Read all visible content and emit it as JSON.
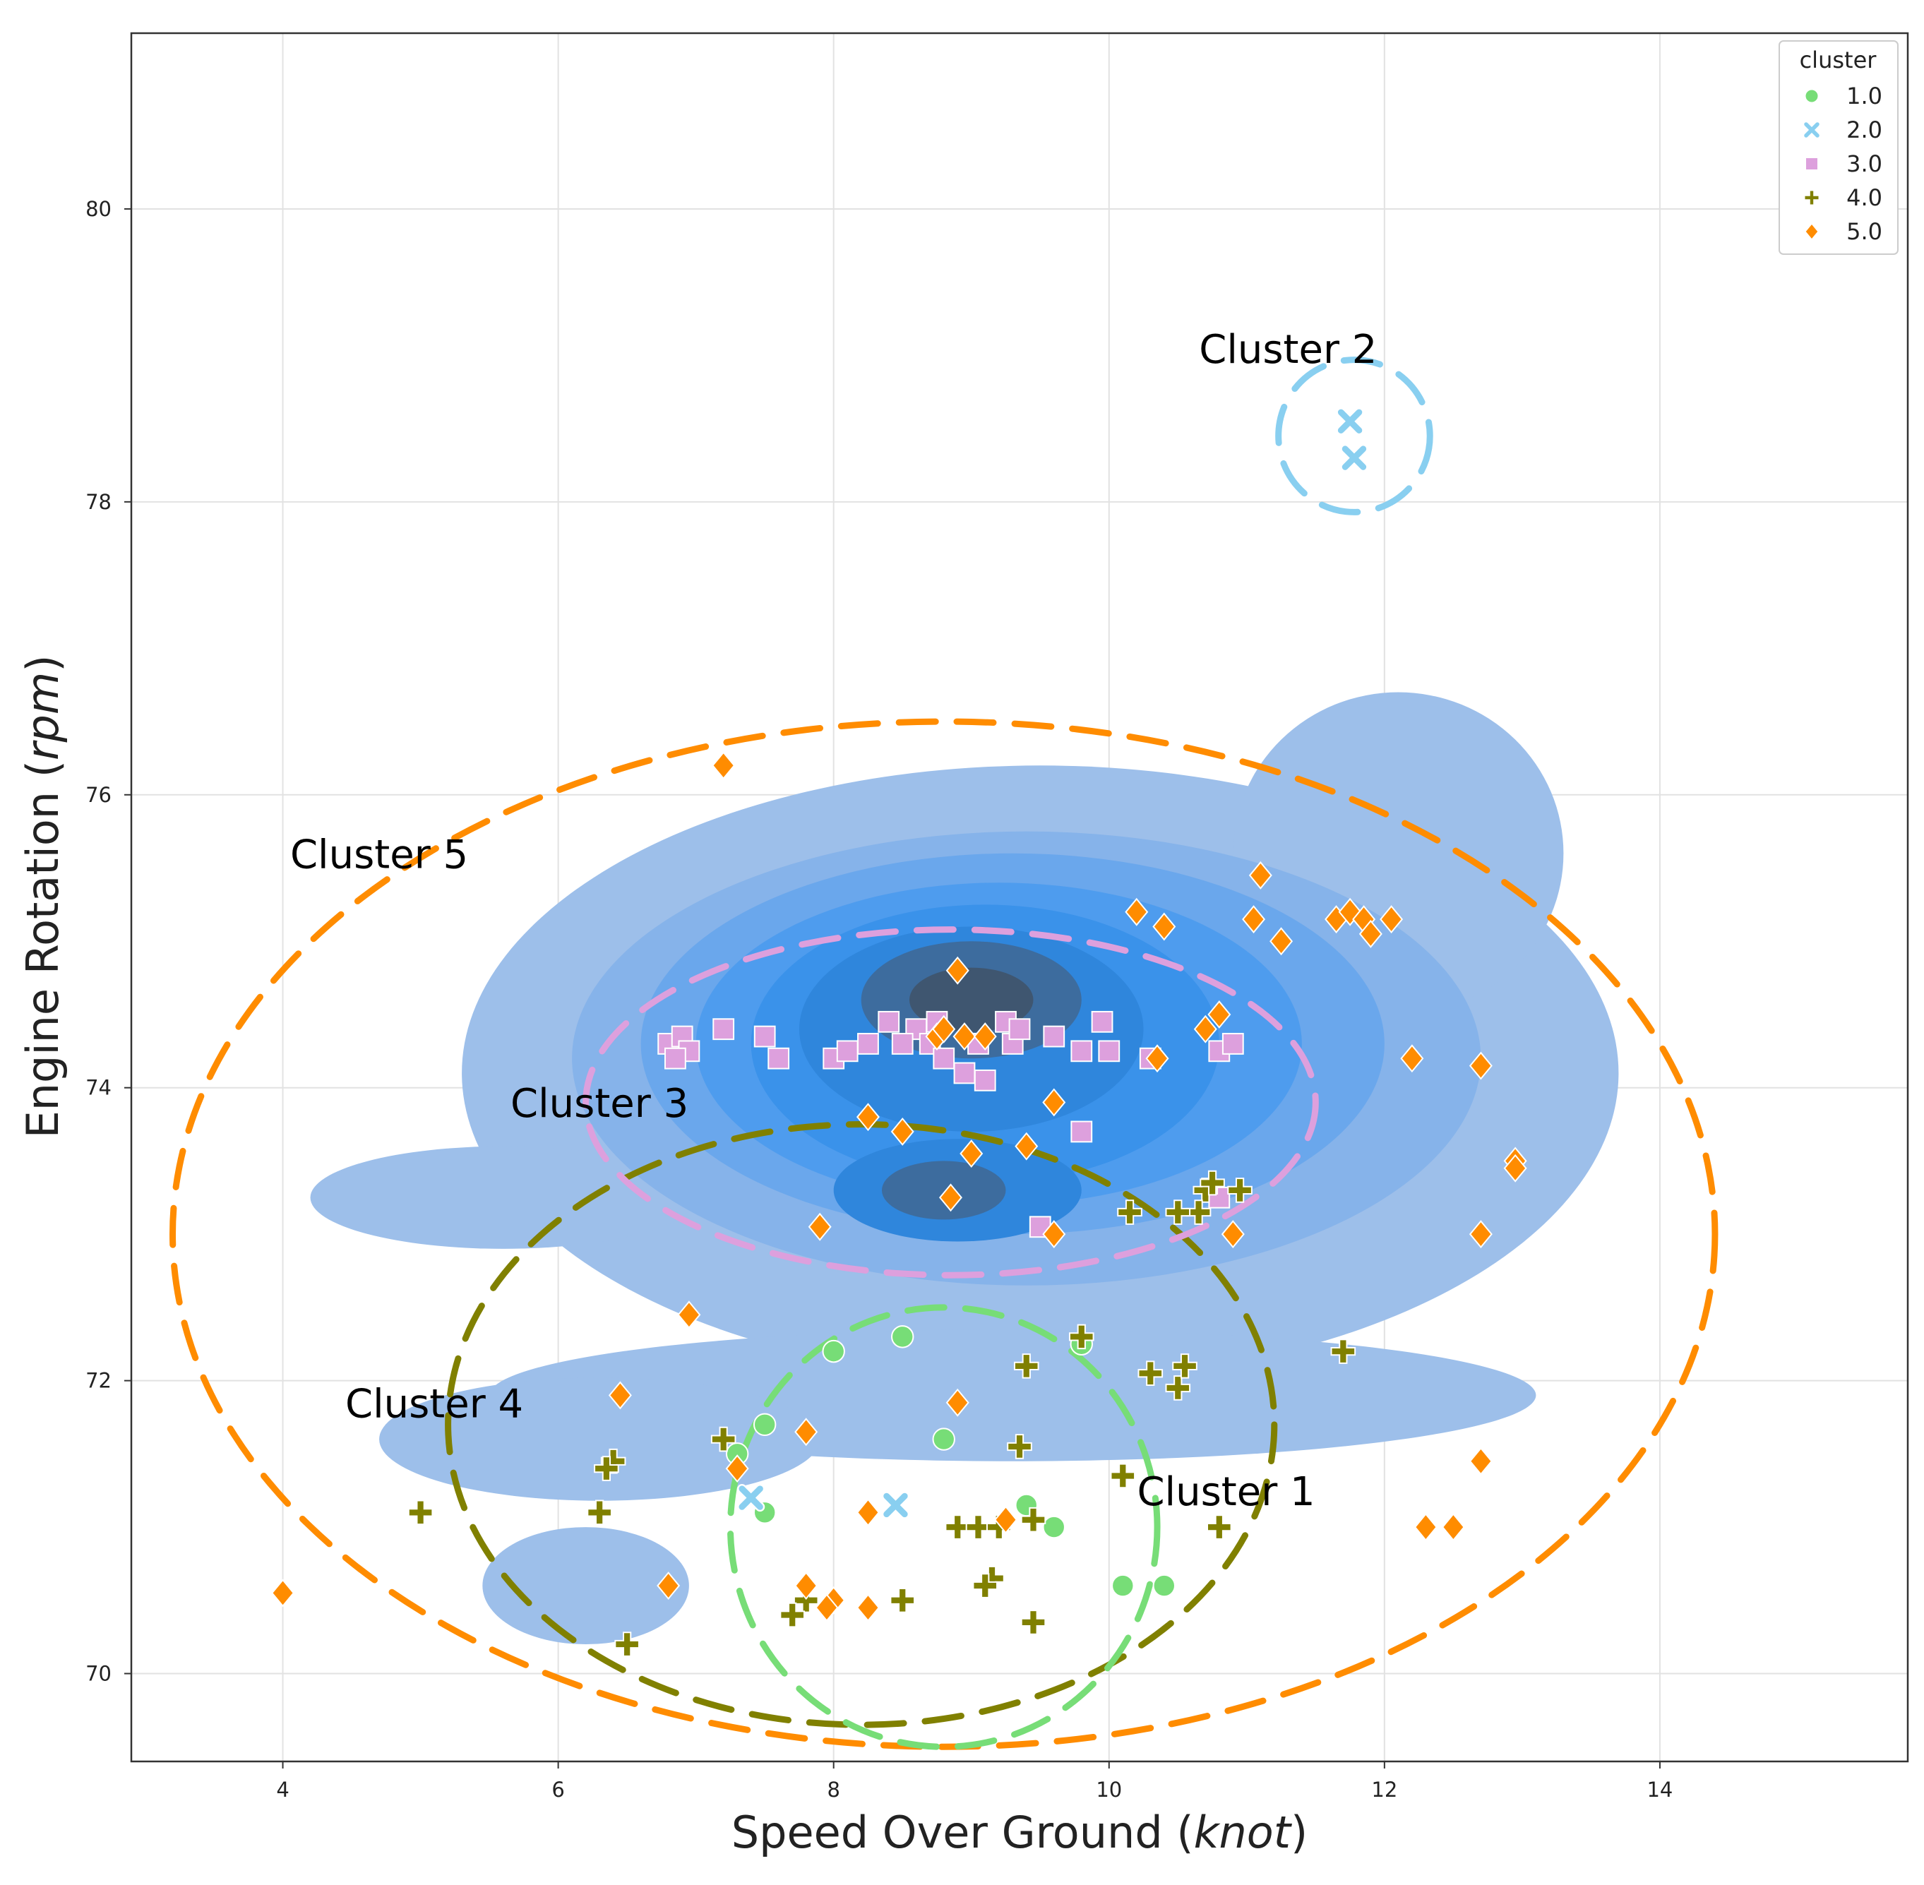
{
  "chart_data": {
    "type": "scatter",
    "xlabel_main": "Speed Over Ground (",
    "xlabel_unit": "knot",
    "xlabel_end": ")",
    "ylabel_main": "Engine Rotation (",
    "ylabel_unit": "rpm",
    "ylabel_end": ")",
    "xlim": [
      2.9,
      15.8
    ],
    "ylim": [
      69.4,
      81.2
    ],
    "xticks": [
      4,
      6,
      8,
      10,
      12,
      14
    ],
    "yticks": [
      70,
      72,
      74,
      76,
      78,
      80
    ],
    "xtick_labels": [
      "4",
      "6",
      "8",
      "10",
      "12",
      "14"
    ],
    "ytick_labels": [
      "70",
      "72",
      "74",
      "76",
      "78",
      "80"
    ],
    "grid": true,
    "legend": {
      "title": "cluster",
      "placement": "top-right",
      "entries": [
        {
          "label": "1.0",
          "color": "#77dd77",
          "marker": "circle"
        },
        {
          "label": "2.0",
          "color": "#89cff0",
          "marker": "x"
        },
        {
          "label": "3.0",
          "color": "#dda0dd",
          "marker": "square"
        },
        {
          "label": "4.0",
          "color": "#808000",
          "marker": "plus"
        },
        {
          "label": "5.0",
          "color": "#ff8c00",
          "marker": "diamond"
        }
      ]
    },
    "density": {
      "colors": [
        "#9dbfea",
        "#86b3ea",
        "#6aa7ec",
        "#4e9cee",
        "#3a92ea",
        "#2f86dc",
        "#3d6c9e",
        "#3f5670"
      ],
      "levels": [
        {
          "contours": [
            {
              "cx": 9.5,
              "cy": 74.1,
              "rx": 4.2,
              "ry": 2.1
            },
            {
              "cx": 5.6,
              "cy": 73.25,
              "rx": 1.4,
              "ry": 0.35
            },
            {
              "cx": 9.3,
              "cy": 71.9,
              "rx": 3.8,
              "ry": 0.45
            },
            {
              "cx": 6.3,
              "cy": 71.6,
              "rx": 1.6,
              "ry": 0.42
            },
            {
              "cx": 12.1,
              "cy": 75.6,
              "rx": 1.2,
              "ry": 1.1
            },
            {
              "cx": 6.2,
              "cy": 70.6,
              "rx": 0.75,
              "ry": 0.4
            }
          ]
        },
        {
          "contours": [
            {
              "cx": 9.4,
              "cy": 74.2,
              "rx": 3.3,
              "ry": 1.55
            }
          ]
        },
        {
          "contours": [
            {
              "cx": 9.3,
              "cy": 74.3,
              "rx": 2.7,
              "ry": 1.3
            }
          ]
        },
        {
          "contours": [
            {
              "cx": 9.2,
              "cy": 74.3,
              "rx": 2.2,
              "ry": 1.1
            }
          ]
        },
        {
          "contours": [
            {
              "cx": 9.1,
              "cy": 74.3,
              "rx": 1.7,
              "ry": 0.95
            }
          ]
        },
        {
          "contours": [
            {
              "cx": 9.0,
              "cy": 74.4,
              "rx": 1.25,
              "ry": 0.7
            },
            {
              "cx": 8.9,
              "cy": 73.3,
              "rx": 0.9,
              "ry": 0.35
            }
          ]
        },
        {
          "contours": [
            {
              "cx": 9.0,
              "cy": 74.6,
              "rx": 0.8,
              "ry": 0.4
            },
            {
              "cx": 8.8,
              "cy": 73.3,
              "rx": 0.45,
              "ry": 0.2
            }
          ]
        },
        {
          "contours": [
            {
              "cx": 9.0,
              "cy": 74.6,
              "rx": 0.45,
              "ry": 0.22
            }
          ]
        }
      ]
    },
    "series": [
      {
        "name": "1.0",
        "color": "#77dd77",
        "marker": "circle",
        "points": [
          [
            8.0,
            72.2
          ],
          [
            8.5,
            72.3
          ],
          [
            7.5,
            71.7
          ],
          [
            7.5,
            71.1
          ],
          [
            9.4,
            71.15
          ],
          [
            9.6,
            71.0
          ],
          [
            10.1,
            70.6
          ],
          [
            10.4,
            70.6
          ],
          [
            9.8,
            72.25
          ],
          [
            7.3,
            71.5
          ],
          [
            8.8,
            71.6
          ]
        ]
      },
      {
        "name": "2.0",
        "color": "#89cff0",
        "marker": "x",
        "points": [
          [
            11.75,
            78.55
          ],
          [
            11.78,
            78.3
          ],
          [
            7.4,
            71.2
          ],
          [
            8.45,
            71.15
          ]
        ]
      },
      {
        "name": "3.0",
        "color": "#dda0dd",
        "marker": "square",
        "points": [
          [
            6.8,
            74.3
          ],
          [
            6.9,
            74.35
          ],
          [
            7.2,
            74.4
          ],
          [
            6.95,
            74.25
          ],
          [
            7.5,
            74.35
          ],
          [
            7.6,
            74.2
          ],
          [
            8.0,
            74.2
          ],
          [
            8.1,
            74.25
          ],
          [
            8.25,
            74.3
          ],
          [
            8.4,
            74.45
          ],
          [
            8.6,
            74.4
          ],
          [
            8.7,
            74.3
          ],
          [
            8.75,
            74.45
          ],
          [
            8.8,
            74.2
          ],
          [
            8.95,
            74.1
          ],
          [
            9.05,
            74.3
          ],
          [
            9.1,
            74.05
          ],
          [
            9.25,
            74.45
          ],
          [
            9.3,
            74.3
          ],
          [
            9.35,
            74.4
          ],
          [
            9.6,
            74.35
          ],
          [
            9.8,
            74.25
          ],
          [
            9.95,
            74.45
          ],
          [
            10.0,
            74.25
          ],
          [
            10.3,
            74.2
          ],
          [
            10.8,
            74.25
          ],
          [
            10.9,
            74.3
          ],
          [
            9.8,
            73.7
          ],
          [
            8.5,
            74.3
          ],
          [
            9.5,
            73.05
          ],
          [
            10.8,
            73.25
          ],
          [
            6.85,
            74.2
          ]
        ]
      },
      {
        "name": "4.0",
        "color": "#808000",
        "marker": "plus",
        "points": [
          [
            5.0,
            71.1
          ],
          [
            6.3,
            71.1
          ],
          [
            6.4,
            71.45
          ],
          [
            6.35,
            71.4
          ],
          [
            6.5,
            70.2
          ],
          [
            7.2,
            71.6
          ],
          [
            7.8,
            70.5
          ],
          [
            7.7,
            70.4
          ],
          [
            8.5,
            70.5
          ],
          [
            8.9,
            71.0
          ],
          [
            9.05,
            71.0
          ],
          [
            9.15,
            70.65
          ],
          [
            9.1,
            70.6
          ],
          [
            9.45,
            71.05
          ],
          [
            9.45,
            70.35
          ],
          [
            9.35,
            71.55
          ],
          [
            9.4,
            72.1
          ],
          [
            9.8,
            72.3
          ],
          [
            10.1,
            71.35
          ],
          [
            10.3,
            72.05
          ],
          [
            10.5,
            71.95
          ],
          [
            10.55,
            72.1
          ],
          [
            10.7,
            73.3
          ],
          [
            10.65,
            73.15
          ],
          [
            10.75,
            73.35
          ],
          [
            10.95,
            73.3
          ],
          [
            10.15,
            73.15
          ],
          [
            10.5,
            73.15
          ],
          [
            11.7,
            72.2
          ],
          [
            10.8,
            71.0
          ],
          [
            9.2,
            71.0
          ]
        ]
      },
      {
        "name": "5.0",
        "color": "#ff8c00",
        "marker": "diamond",
        "points": [
          [
            4.0,
            70.55
          ],
          [
            6.45,
            71.9
          ],
          [
            6.8,
            70.6
          ],
          [
            6.95,
            72.45
          ],
          [
            7.2,
            76.2
          ],
          [
            7.3,
            71.4
          ],
          [
            7.8,
            71.65
          ],
          [
            7.8,
            70.6
          ],
          [
            7.9,
            73.05
          ],
          [
            8.0,
            70.5
          ],
          [
            7.95,
            70.45
          ],
          [
            8.25,
            70.45
          ],
          [
            8.25,
            73.8
          ],
          [
            8.25,
            71.1
          ],
          [
            8.5,
            73.7
          ],
          [
            8.9,
            71.85
          ],
          [
            8.9,
            74.8
          ],
          [
            8.75,
            74.35
          ],
          [
            8.8,
            74.4
          ],
          [
            8.95,
            74.35
          ],
          [
            9.1,
            74.35
          ],
          [
            8.85,
            73.25
          ],
          [
            9.0,
            73.55
          ],
          [
            9.25,
            71.05
          ],
          [
            9.6,
            73.0
          ],
          [
            9.6,
            73.9
          ],
          [
            9.4,
            73.6
          ],
          [
            10.2,
            75.2
          ],
          [
            10.35,
            74.2
          ],
          [
            10.4,
            75.1
          ],
          [
            10.7,
            74.4
          ],
          [
            10.8,
            74.5
          ],
          [
            11.05,
            75.15
          ],
          [
            11.1,
            75.45
          ],
          [
            11.25,
            75.0
          ],
          [
            10.9,
            73.0
          ],
          [
            11.65,
            75.15
          ],
          [
            11.75,
            75.2
          ],
          [
            11.85,
            75.15
          ],
          [
            11.9,
            75.05
          ],
          [
            12.05,
            75.15
          ],
          [
            12.2,
            74.2
          ],
          [
            12.7,
            74.15
          ],
          [
            12.7,
            73.0
          ],
          [
            12.95,
            73.5
          ],
          [
            12.95,
            73.45
          ],
          [
            12.7,
            71.45
          ],
          [
            12.3,
            71.0
          ],
          [
            12.5,
            71.0
          ]
        ]
      }
    ],
    "outline_ellipses": [
      {
        "name": "cluster-5",
        "color": "#ff8c00",
        "cx": 8.8,
        "cy": 73.0,
        "rx": 5.6,
        "ry": 3.5
      },
      {
        "name": "cluster-4",
        "color": "#808000",
        "cx": 8.2,
        "cy": 71.7,
        "rx": 3.0,
        "ry": 2.05
      },
      {
        "name": "cluster-3",
        "color": "#dda0dd",
        "cx": 8.85,
        "cy": 73.9,
        "rx": 2.65,
        "ry": 1.18
      },
      {
        "name": "cluster-1",
        "color": "#77dd77",
        "cx": 8.8,
        "cy": 71.0,
        "rx": 1.55,
        "ry": 1.5
      },
      {
        "name": "cluster-2",
        "color": "#89cff0",
        "cx": 11.78,
        "cy": 78.45,
        "rx": 0.55,
        "ry": 0.52
      }
    ],
    "annotations": [
      {
        "text": "Cluster 2",
        "x": 11.3,
        "y": 78.95
      },
      {
        "text": "Cluster 5",
        "x": 4.7,
        "y": 75.5
      },
      {
        "text": "Cluster 3",
        "x": 6.3,
        "y": 73.8
      },
      {
        "text": "Cluster 4",
        "x": 5.1,
        "y": 71.75
      },
      {
        "text": "Cluster 1",
        "x": 10.85,
        "y": 71.15
      }
    ]
  }
}
